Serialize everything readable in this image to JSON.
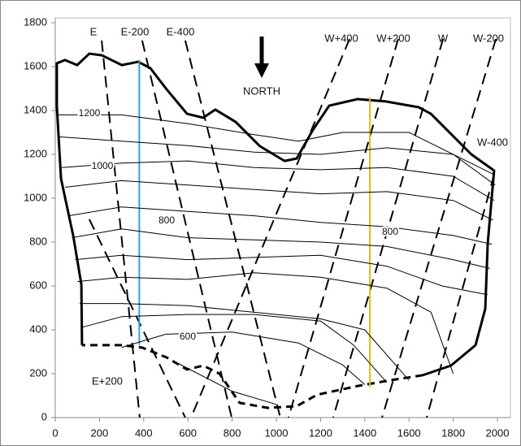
{
  "chart_data": {
    "type": "line",
    "xlim": [
      0,
      2000
    ],
    "ylim": [
      0,
      1800
    ],
    "xticks": [
      0,
      200,
      400,
      600,
      800,
      1000,
      1200,
      1400,
      1600,
      1800,
      2000
    ],
    "yticks": [
      0,
      200,
      400,
      600,
      800,
      1000,
      1200,
      1400,
      1600,
      1800
    ],
    "grid": false,
    "legend": false,
    "annotations": [
      "NORTH"
    ],
    "series": [
      {
        "style": "bold",
        "color": "#000000",
        "x": [
          121,
          118,
          81,
          26,
          7,
          7,
          44,
          99,
          154,
          210,
          301,
          375,
          430,
          504,
          596,
          669,
          724,
          816,
          926,
          1037,
          1092,
          1165,
          1239,
          1368,
          1496,
          1643,
          1699,
          1882,
          1985,
          1956,
          1945,
          1901,
          1790,
          1662
        ],
        "values": [
          330,
          607,
          830,
          1089,
          1422,
          1615,
          1630,
          1607,
          1659,
          1652,
          1607,
          1622,
          1593,
          1496,
          1385,
          1367,
          1404,
          1348,
          1237,
          1170,
          1181,
          1311,
          1422,
          1452,
          1441,
          1415,
          1385,
          1200,
          1126,
          793,
          496,
          330,
          237,
          193
        ]
      },
      {
        "style": "bold-dashed",
        "color": "#000000",
        "x": [
          1662,
          1515,
          1368,
          1184,
          1092,
          963,
          834,
          743,
          669,
          596,
          504,
          393,
          301,
          121
        ],
        "values": [
          193,
          170,
          144,
          104,
          52,
          44,
          67,
          200,
          237,
          219,
          274,
          319,
          330,
          330
        ]
      },
      {
        "name": "E",
        "style": "dashed",
        "color": "#000000",
        "x": [
          210,
          382
        ],
        "values": [
          1719,
          0
        ]
      },
      {
        "name": "E-200",
        "style": "dashed",
        "color": "#000000",
        "x": [
          393,
          798
        ],
        "values": [
          1719,
          0
        ]
      },
      {
        "name": "E-400",
        "style": "dashed",
        "color": "#000000",
        "x": [
          588,
          1018
        ],
        "values": [
          1719,
          0
        ]
      },
      {
        "name": "E+200",
        "style": "dashed",
        "color": "#000000",
        "x": [
          154,
          588
        ],
        "values": [
          904,
          0
        ]
      },
      {
        "name": "W+400",
        "style": "dashed",
        "color": "#000000",
        "x": [
          1331,
          614
        ],
        "values": [
          1726,
          0
        ]
      },
      {
        "name": "W+200",
        "style": "dashed",
        "color": "#000000",
        "x": [
          1551,
          1055
        ],
        "values": [
          1726,
          0
        ]
      },
      {
        "name": "W",
        "style": "dashed",
        "color": "#000000",
        "x": [
          1754,
          1257
        ],
        "values": [
          1726,
          0
        ]
      },
      {
        "name": "W-200",
        "style": "dashed",
        "color": "#000000",
        "x": [
          1993,
          1478
        ],
        "values": [
          1726,
          0
        ]
      },
      {
        "name": "W-400",
        "style": "dashed",
        "color": "#000000",
        "x": [
          1985,
          1680
        ],
        "values": [
          1107,
          0
        ]
      },
      {
        "style": "medium",
        "color": "#29a8e0",
        "x": [
          380,
          380
        ],
        "values": [
          330,
          1630
        ]
      },
      {
        "style": "medium",
        "color": "#f5b800",
        "x": [
          1423,
          1423
        ],
        "values": [
          140,
          1460
        ]
      },
      {
        "name": "1200",
        "style": "thin",
        "color": "#000000",
        "x": [
          10,
          300,
          600,
          900,
          1100,
          1300,
          1600,
          1980
        ],
        "values": [
          1380,
          1380,
          1340,
          1290,
          1260,
          1300,
          1300,
          1110
        ]
      },
      {
        "style": "thin",
        "color": "#000000",
        "x": [
          15,
          300,
          600,
          900,
          1200,
          1500,
          1800,
          1990
        ],
        "values": [
          1280,
          1260,
          1240,
          1210,
          1200,
          1230,
          1200,
          1060
        ]
      },
      {
        "name": "1000",
        "style": "thin",
        "color": "#000000",
        "x": [
          30,
          300,
          600,
          900,
          1200,
          1500,
          1800,
          1985
        ],
        "values": [
          1140,
          1160,
          1170,
          1140,
          1130,
          1140,
          1100,
          990
        ]
      },
      {
        "style": "thin",
        "color": "#000000",
        "x": [
          45,
          300,
          600,
          900,
          1200,
          1500,
          1800,
          1980
        ],
        "values": [
          1050,
          1080,
          1060,
          1040,
          1020,
          1030,
          990,
          900
        ]
      },
      {
        "name": "800",
        "style": "thin",
        "color": "#000000",
        "x": [
          60,
          300,
          600,
          900,
          1200,
          1500,
          1800,
          1975
        ],
        "values": [
          920,
          960,
          940,
          920,
          890,
          870,
          830,
          790
        ]
      },
      {
        "style": "thin",
        "color": "#000000",
        "x": [
          75,
          300,
          600,
          900,
          1200,
          1500,
          1800,
          1965
        ],
        "values": [
          820,
          860,
          820,
          810,
          800,
          780,
          720,
          680
        ]
      },
      {
        "style": "thin",
        "color": "#000000",
        "x": [
          90,
          300,
          600,
          900,
          1200,
          1500,
          1750,
          1955
        ],
        "values": [
          720,
          740,
          720,
          730,
          740,
          690,
          600,
          560
        ]
      },
      {
        "style": "thin",
        "color": "#000000",
        "x": [
          100,
          300,
          600,
          900,
          1200,
          1500,
          1700,
          1800
        ],
        "values": [
          620,
          640,
          630,
          660,
          640,
          590,
          480,
          200
        ]
      },
      {
        "style": "thin",
        "color": "#000000",
        "x": [
          110,
          300,
          600,
          900,
          1200,
          1400,
          1600
        ],
        "values": [
          520,
          520,
          510,
          480,
          450,
          400,
          170
        ]
      },
      {
        "style": "thin",
        "color": "#000000",
        "x": [
          115,
          300,
          600,
          900,
          1200,
          1350,
          1500
        ],
        "values": [
          410,
          460,
          470,
          470,
          440,
          330,
          160
        ]
      },
      {
        "name": "600",
        "style": "thin",
        "color": "#000000",
        "x": [
          300,
          500,
          800,
          1100,
          1300,
          1400
        ],
        "values": [
          320,
          380,
          390,
          340,
          240,
          150
        ]
      },
      {
        "style": "thin",
        "color": "#000000",
        "x": [
          550,
          800,
          1000
        ],
        "values": [
          250,
          120,
          60
        ]
      }
    ]
  }
}
